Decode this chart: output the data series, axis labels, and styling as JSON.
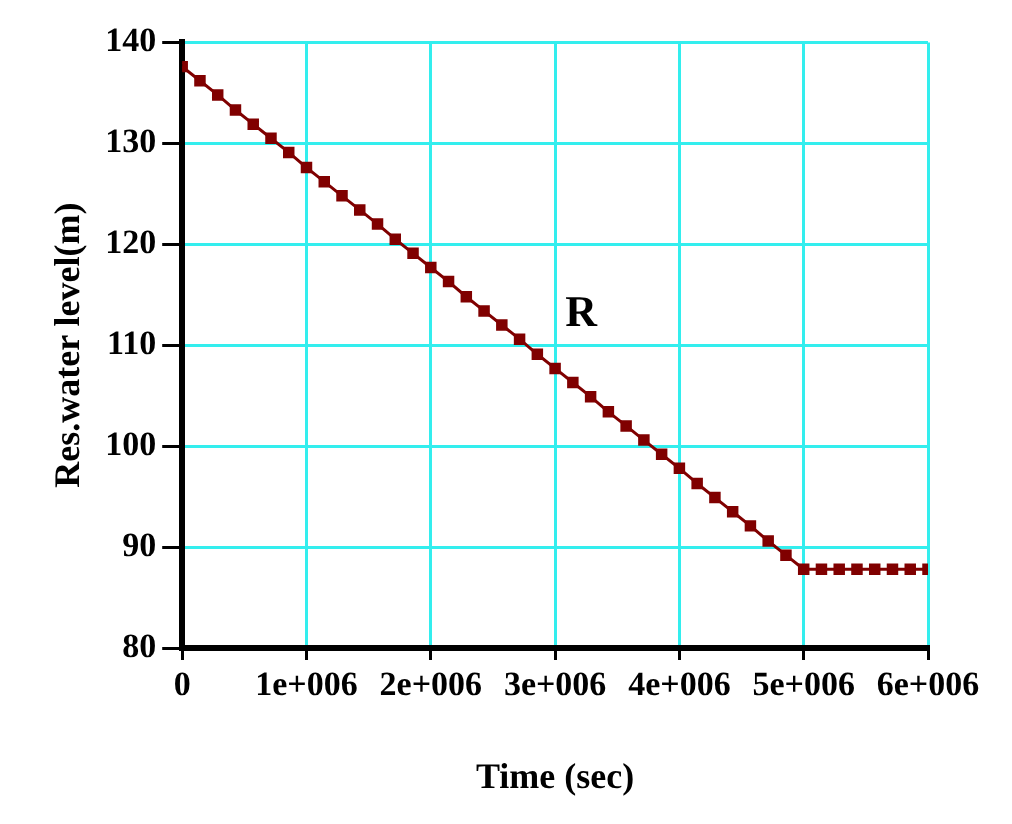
{
  "chart_data": {
    "type": "line",
    "xlabel": "Time (sec)",
    "ylabel": "Res.water level(m)",
    "x": [
      0,
      142857,
      285714,
      428571,
      571429,
      714286,
      857143,
      1000000,
      1142857,
      1285714,
      1428571,
      1571429,
      1714286,
      1857143,
      2000000,
      2142857,
      2285714,
      2428571,
      2571429,
      2714286,
      2857143,
      3000000,
      3142857,
      3285714,
      3428571,
      3571429,
      3714286,
      3857143,
      4000000,
      4142857,
      4285714,
      4428571,
      4571429,
      4714286,
      4857143,
      5000000,
      5142857,
      5285714,
      5428571,
      5571429,
      5714286,
      5857143,
      6000000
    ],
    "series": [
      {
        "color": "#800000",
        "values": [
          137.6,
          136.2,
          134.8,
          133.3,
          131.9,
          130.5,
          129.1,
          127.6,
          126.2,
          124.8,
          123.4,
          122.0,
          120.5,
          119.1,
          117.7,
          116.3,
          114.8,
          113.4,
          112.0,
          110.6,
          109.1,
          107.7,
          106.3,
          104.9,
          103.4,
          102.0,
          100.6,
          99.2,
          97.8,
          96.3,
          94.9,
          93.5,
          92.1,
          90.6,
          89.2,
          87.8,
          87.8,
          87.8,
          87.8,
          87.8,
          87.8,
          87.8,
          87.8
        ]
      }
    ],
    "xlim": [
      0,
      6000000
    ],
    "xticks": [
      0,
      {
        "value": 1000000,
        "label": "1e+006"
      },
      {
        "value": 2000000,
        "label": "2e+006"
      },
      {
        "value": 3000000,
        "label": "3e+006"
      },
      {
        "value": 4000000,
        "label": "4e+006"
      },
      {
        "value": 5000000,
        "label": "5e+006"
      },
      {
        "value": 6000000,
        "label": "6e+006"
      }
    ],
    "ylim": [
      80,
      140
    ],
    "yticks": [
      80,
      90,
      100,
      110,
      120,
      130,
      140
    ],
    "grid": true,
    "legend": false,
    "marker": "square",
    "line_style": "solid",
    "annotations": [
      "R"
    ]
  }
}
